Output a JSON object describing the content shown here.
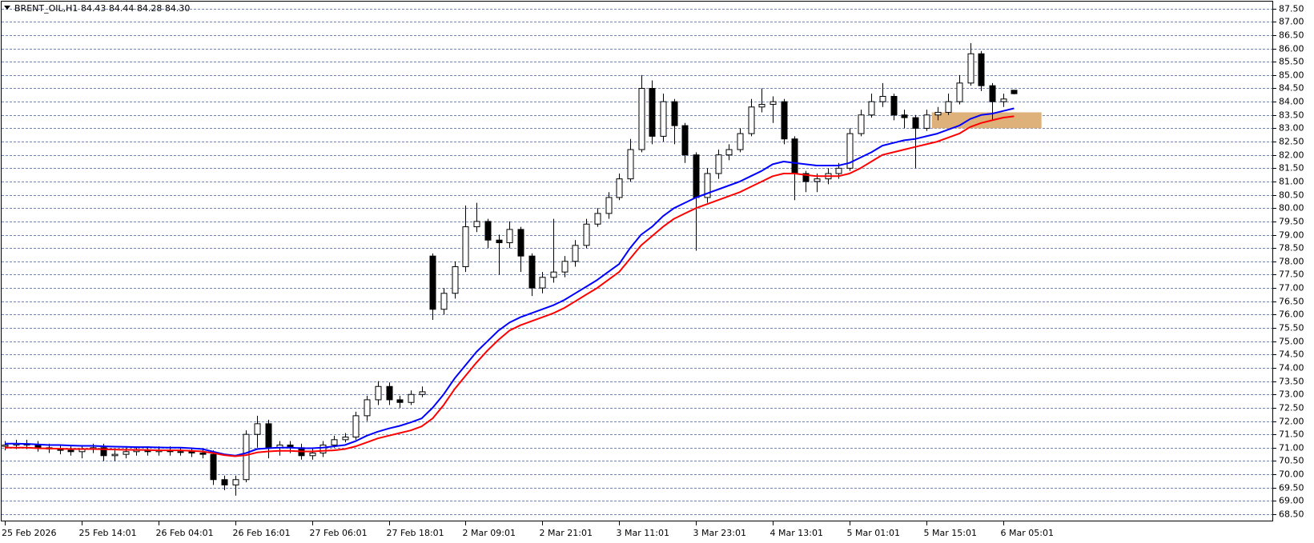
{
  "chart_data": {
    "type": "candlestick",
    "title": "BRENT_OIL,H1  84.43 84.44 84.28 84.30",
    "x_labels": [
      "25 Feb 2026",
      "25 Feb 14:01",
      "26 Feb 04:01",
      "26 Feb 16:01",
      "27 Feb 06:01",
      "27 Feb 18:01",
      "2 Mar 09:01",
      "2 Mar 21:01",
      "3 Mar 11:01",
      "3 Mar 23:01",
      "4 Mar 13:01",
      "5 Mar 01:01",
      "5 Mar 15:01",
      "6 Mar 05:01"
    ],
    "ylim": [
      68.23,
      87.82
    ],
    "yticks": [
      {
        "value": 68.5,
        "label": "68.50"
      },
      {
        "value": 69,
        "label": "69.00"
      },
      {
        "value": 69.5,
        "label": "69.50"
      },
      {
        "value": 70,
        "label": "70.00"
      },
      {
        "value": 70.5,
        "label": "70.50"
      },
      {
        "value": 71,
        "label": "71.00"
      },
      {
        "value": 71.5,
        "label": "71.50"
      },
      {
        "value": 72,
        "label": "72.00"
      },
      {
        "value": 72.5,
        "label": "72.50"
      },
      {
        "value": 73,
        "label": "73.00"
      },
      {
        "value": 73.5,
        "label": "73.50"
      },
      {
        "value": 74,
        "label": "74.00"
      },
      {
        "value": 74.5,
        "label": "74.50"
      },
      {
        "value": 75,
        "label": "75.00"
      },
      {
        "value": 75.5,
        "label": "75.50"
      },
      {
        "value": 76,
        "label": "76.00"
      },
      {
        "value": 76.5,
        "label": "76.50"
      },
      {
        "value": 77,
        "label": "77.00"
      },
      {
        "value": 77.5,
        "label": "77.50"
      },
      {
        "value": 78,
        "label": "78.00"
      },
      {
        "value": 78.5,
        "label": "78.50"
      },
      {
        "value": 79,
        "label": "79.00"
      },
      {
        "value": 79.5,
        "label": "79.50"
      },
      {
        "value": 80,
        "label": "80.00"
      },
      {
        "value": 80.5,
        "label": "80.50"
      },
      {
        "value": 81,
        "label": "81.00"
      },
      {
        "value": 81.5,
        "label": "81.50"
      },
      {
        "value": 82,
        "label": "82.00"
      },
      {
        "value": 82.5,
        "label": "82.50"
      },
      {
        "value": 83,
        "label": "83.00"
      },
      {
        "value": 83.5,
        "label": "83.50"
      },
      {
        "value": 84,
        "label": "84.00"
      },
      {
        "value": 84.5,
        "label": "84.50"
      },
      {
        "value": 85,
        "label": "85.00"
      },
      {
        "value": 85.5,
        "label": "85.50"
      },
      {
        "value": 86,
        "label": "86.00"
      },
      {
        "value": 86.5,
        "label": "86.50"
      },
      {
        "value": 87,
        "label": "87.00"
      },
      {
        "value": 87.5,
        "label": "87.50"
      }
    ],
    "grid": true,
    "candles": {
      "open": [
        71.05,
        71.1,
        71.15,
        71.1,
        71.0,
        70.95,
        70.9,
        70.85,
        70.95,
        71.0,
        70.7,
        70.75,
        70.85,
        70.9,
        70.85,
        70.9,
        70.85,
        70.85,
        70.8,
        70.75,
        69.8,
        69.6,
        69.8,
        71.5,
        71.9,
        71.0,
        71.1,
        71.0,
        70.7,
        70.8,
        71.1,
        71.3,
        71.4,
        72.2,
        72.8,
        73.3,
        72.8,
        72.7,
        73.0,
        78.2,
        76.2,
        76.8,
        77.8,
        79.3,
        79.5,
        78.8,
        78.7,
        79.2,
        78.2,
        77.0,
        77.4,
        77.6,
        78.0,
        78.6,
        79.4,
        79.8,
        80.4,
        81.1,
        82.2,
        84.5,
        82.7,
        84.0,
        83.1,
        82.0,
        80.4,
        81.3,
        82.0,
        82.2,
        82.8,
        83.8,
        83.9,
        84.0,
        82.6,
        81.3,
        81.0,
        81.1,
        81.3,
        81.5,
        82.8,
        83.5,
        84.0,
        84.2,
        83.5,
        83.4,
        83.0,
        83.5,
        83.6,
        84.0,
        84.7,
        85.8,
        84.6,
        84.0,
        84.43
      ],
      "high": [
        71.25,
        71.3,
        71.3,
        71.25,
        71.15,
        71.1,
        71.05,
        71.1,
        71.15,
        71.15,
        70.9,
        71.0,
        71.05,
        71.05,
        71.05,
        71.05,
        71.0,
        71.0,
        70.95,
        70.9,
        69.95,
        69.95,
        71.65,
        72.2,
        72.05,
        71.25,
        71.25,
        71.15,
        70.95,
        71.25,
        71.45,
        71.55,
        72.35,
        72.95,
        73.5,
        73.45,
        72.95,
        73.15,
        73.3,
        78.3,
        77.0,
        78.0,
        80.1,
        80.2,
        79.6,
        79.0,
        79.5,
        79.3,
        78.3,
        77.6,
        79.6,
        78.2,
        78.8,
        79.6,
        80.0,
        80.6,
        81.3,
        82.6,
        85.0,
        84.8,
        84.3,
        84.1,
        83.2,
        82.1,
        81.5,
        82.2,
        82.4,
        83.0,
        84.1,
        84.5,
        84.2,
        84.1,
        82.7,
        81.4,
        81.3,
        81.5,
        81.7,
        83.0,
        83.7,
        84.3,
        84.7,
        84.3,
        83.7,
        83.5,
        83.7,
        83.8,
        84.3,
        85.0,
        86.2,
        85.9,
        84.7,
        84.3,
        84.44
      ],
      "low": [
        70.9,
        70.95,
        70.95,
        70.85,
        70.8,
        70.75,
        70.7,
        70.6,
        70.8,
        70.5,
        70.5,
        70.6,
        70.7,
        70.7,
        70.7,
        70.7,
        70.7,
        70.65,
        70.6,
        69.6,
        69.4,
        69.2,
        69.7,
        71.0,
        70.6,
        70.7,
        70.8,
        70.55,
        70.55,
        70.65,
        71.0,
        71.2,
        71.3,
        72.0,
        72.6,
        72.6,
        72.5,
        72.6,
        72.9,
        75.8,
        76.0,
        76.6,
        77.6,
        79.1,
        78.5,
        77.5,
        78.5,
        77.6,
        76.7,
        76.8,
        77.2,
        77.4,
        77.8,
        78.5,
        79.3,
        79.6,
        80.3,
        81.0,
        82.1,
        82.4,
        82.5,
        82.4,
        81.7,
        78.4,
        80.2,
        81.1,
        81.8,
        82.1,
        82.7,
        83.6,
        83.2,
        82.4,
        80.3,
        80.6,
        80.6,
        80.9,
        81.1,
        81.4,
        82.7,
        83.4,
        83.8,
        83.3,
        83.0,
        81.5,
        82.9,
        83.3,
        83.5,
        83.9,
        84.6,
        84.4,
        83.3,
        83.8,
        84.28
      ],
      "close": [
        71.1,
        71.15,
        71.1,
        71.0,
        70.95,
        70.9,
        70.85,
        70.95,
        71.0,
        70.7,
        70.75,
        70.85,
        70.9,
        70.85,
        70.9,
        70.85,
        70.85,
        70.8,
        70.75,
        69.8,
        69.6,
        69.8,
        71.5,
        71.9,
        71.0,
        71.1,
        71.0,
        70.7,
        70.8,
        71.1,
        71.3,
        71.4,
        72.2,
        72.8,
        73.3,
        72.8,
        72.7,
        73.0,
        73.1,
        76.2,
        76.8,
        77.8,
        79.3,
        79.5,
        78.8,
        78.7,
        79.2,
        78.2,
        77.0,
        77.4,
        77.6,
        78.0,
        78.6,
        79.4,
        79.8,
        80.4,
        81.1,
        82.2,
        84.5,
        82.7,
        84.0,
        83.1,
        82.0,
        80.4,
        81.3,
        82.0,
        82.2,
        82.8,
        83.8,
        83.9,
        84.0,
        82.6,
        81.3,
        81.0,
        81.1,
        81.3,
        81.5,
        82.8,
        83.5,
        84.0,
        84.2,
        83.5,
        83.4,
        83.0,
        83.5,
        83.6,
        84.0,
        84.7,
        85.8,
        84.6,
        84.0,
        84.1,
        84.3
      ]
    },
    "series": [
      {
        "color": "#0000ff",
        "values": [
          71.15,
          71.15,
          71.14,
          71.12,
          71.1,
          71.1,
          71.08,
          71.07,
          71.07,
          71.05,
          71.04,
          71.03,
          71.02,
          71.02,
          71.01,
          71.0,
          71.0,
          70.98,
          70.95,
          70.85,
          70.75,
          70.7,
          70.8,
          70.95,
          70.98,
          71.0,
          71.0,
          70.98,
          70.98,
          71.0,
          71.05,
          71.1,
          71.25,
          71.45,
          71.6,
          71.72,
          71.82,
          71.95,
          72.1,
          72.5,
          73.0,
          73.6,
          74.1,
          74.6,
          75.0,
          75.4,
          75.7,
          75.9,
          76.05,
          76.2,
          76.35,
          76.55,
          76.8,
          77.05,
          77.3,
          77.6,
          77.9,
          78.5,
          79.0,
          79.3,
          79.7,
          80.0,
          80.2,
          80.4,
          80.55,
          80.7,
          80.85,
          81.0,
          81.2,
          81.4,
          81.65,
          81.75,
          81.7,
          81.65,
          81.6,
          81.6,
          81.6,
          81.7,
          81.9,
          82.1,
          82.35,
          82.45,
          82.55,
          82.6,
          82.7,
          82.8,
          82.95,
          83.1,
          83.35,
          83.5,
          83.55,
          83.65,
          83.75
        ]
      },
      {
        "color": "#ff0000",
        "values": [
          71.0,
          71.0,
          71.0,
          70.98,
          70.97,
          70.96,
          70.95,
          70.95,
          70.95,
          70.94,
          70.93,
          70.92,
          70.92,
          70.91,
          70.9,
          70.9,
          70.9,
          70.88,
          70.86,
          70.8,
          70.72,
          70.68,
          70.72,
          70.82,
          70.86,
          70.88,
          70.88,
          70.86,
          70.86,
          70.88,
          70.9,
          70.95,
          71.05,
          71.2,
          71.35,
          71.45,
          71.55,
          71.65,
          71.8,
          72.1,
          72.6,
          73.2,
          73.7,
          74.2,
          74.65,
          75.05,
          75.4,
          75.6,
          75.75,
          75.9,
          76.05,
          76.25,
          76.5,
          76.75,
          77.0,
          77.3,
          77.6,
          78.1,
          78.6,
          78.95,
          79.3,
          79.6,
          79.8,
          80.0,
          80.15,
          80.3,
          80.45,
          80.6,
          80.8,
          81.0,
          81.2,
          81.3,
          81.3,
          81.25,
          81.2,
          81.2,
          81.2,
          81.3,
          81.5,
          81.75,
          82.0,
          82.1,
          82.2,
          82.3,
          82.4,
          82.5,
          82.65,
          82.8,
          83.05,
          83.2,
          83.3,
          83.4,
          83.45
        ]
      }
    ],
    "zone": {
      "ylow": 83.0,
      "yhigh": 83.6,
      "xstart": 84.5,
      "xend": 94.5,
      "color": "#dfb17a"
    }
  }
}
